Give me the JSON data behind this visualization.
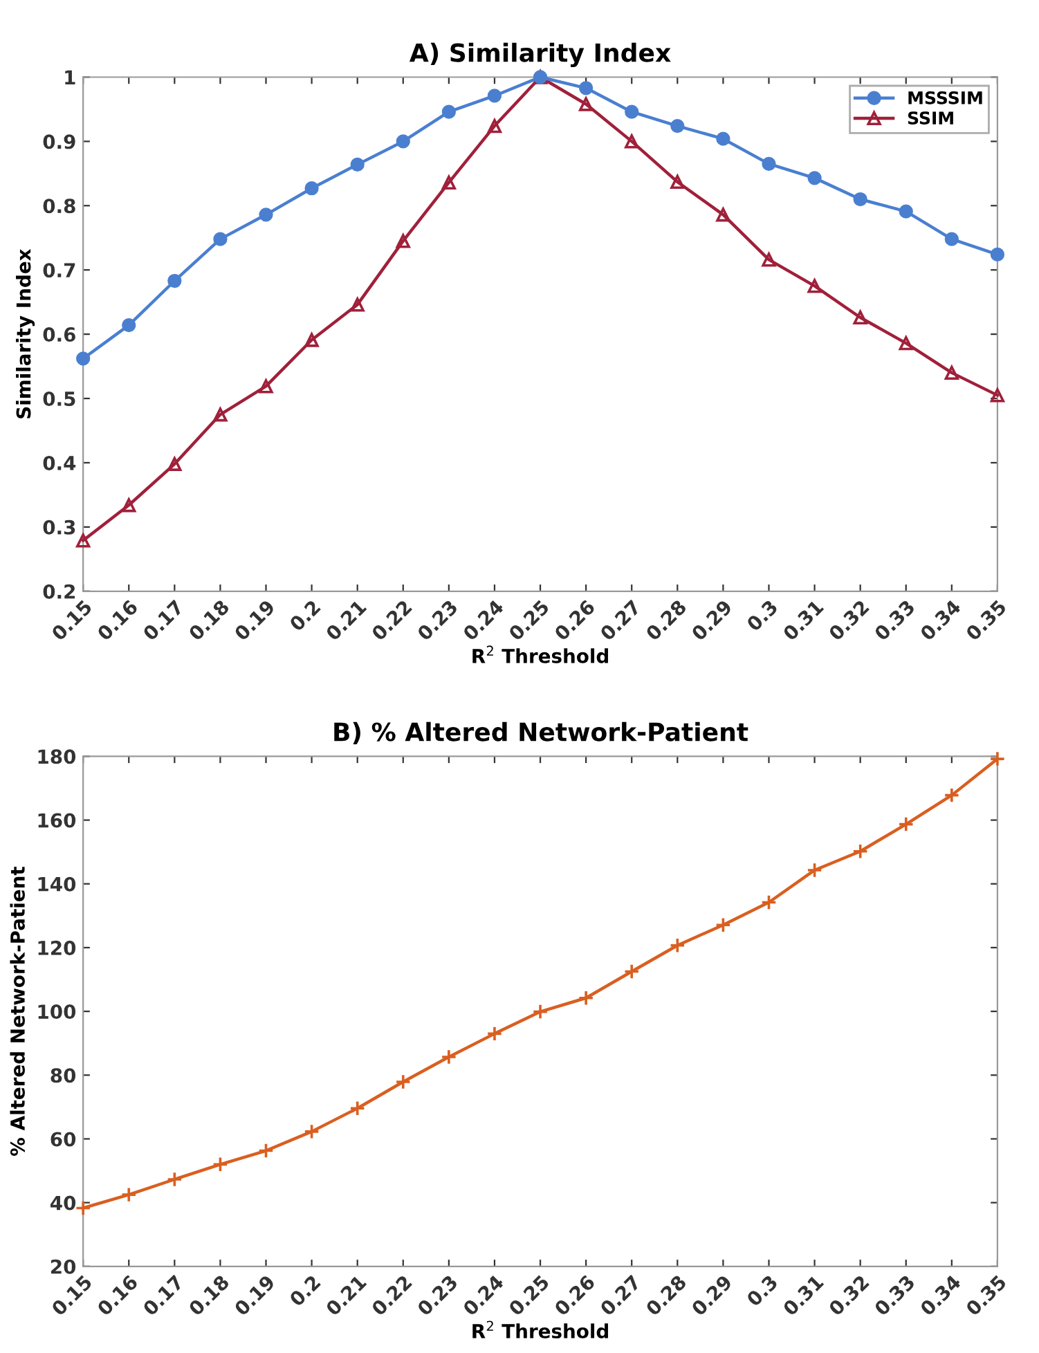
{
  "chart_data": [
    {
      "type": "line",
      "title": "A) Similarity Index",
      "xlabel": "R$^{2}$ Threshold",
      "ylabel": "Similarity Index",
      "x": [
        0.15,
        0.16,
        0.17,
        0.18,
        0.19,
        0.2,
        0.21,
        0.22,
        0.23,
        0.24,
        0.25,
        0.26,
        0.27,
        0.28,
        0.29,
        0.3,
        0.31,
        0.32,
        0.33,
        0.34,
        0.35
      ],
      "series": [
        {
          "name": "MSSSIM",
          "color": "#4a7fd0",
          "marker": "circle",
          "values": [
            0.562,
            0.614,
            0.683,
            0.748,
            0.786,
            0.827,
            0.864,
            0.9,
            0.946,
            0.971,
            1.0,
            0.983,
            0.946,
            0.924,
            0.904,
            0.865,
            0.843,
            0.81,
            0.791,
            0.748,
            0.724
          ]
        },
        {
          "name": "SSIM",
          "color": "#a0203a",
          "marker": "triangle",
          "values": [
            0.279,
            0.334,
            0.398,
            0.475,
            0.519,
            0.591,
            0.646,
            0.745,
            0.836,
            0.924,
            1.0,
            0.958,
            0.9,
            0.837,
            0.786,
            0.716,
            0.675,
            0.626,
            0.586,
            0.54,
            0.505
          ]
        }
      ],
      "xlim": [
        0.15,
        0.35
      ],
      "xticks": [
        0.15,
        0.16,
        0.17,
        0.18,
        0.19,
        0.2,
        0.21,
        0.22,
        0.23,
        0.24,
        0.25,
        0.26,
        0.27,
        0.28,
        0.29,
        0.3,
        0.31,
        0.32,
        0.33,
        0.34,
        0.35
      ],
      "ylim": [
        0.2,
        1
      ],
      "yticks": [
        0.2,
        0.3,
        0.4,
        0.5,
        0.6,
        0.7,
        0.8,
        0.9,
        1
      ],
      "legend": "top right",
      "line_style": "solid"
    },
    {
      "type": "line",
      "title": "B) % Altered Network-Patient",
      "xlabel": "R$^{2}$ Threshold",
      "ylabel": "% Altered Network-Patient",
      "x": [
        0.15,
        0.16,
        0.17,
        0.18,
        0.19,
        0.2,
        0.21,
        0.22,
        0.23,
        0.24,
        0.25,
        0.26,
        0.27,
        0.28,
        0.29,
        0.3,
        0.31,
        0.32,
        0.33,
        0.34,
        0.35
      ],
      "series": [
        {
          "color": "#d95f20",
          "values": [
            38.3,
            42.5,
            47.3,
            52,
            56.3,
            62.3,
            69.6,
            77.9,
            85.7,
            93,
            99.9,
            104.2,
            112.5,
            120.7,
            127.1,
            134.2,
            144.3,
            150.2,
            158.7,
            167.8,
            179.2
          ]
        }
      ],
      "xlim": [
        0.15,
        0.35
      ],
      "xticks": [
        0.15,
        0.16,
        0.17,
        0.18,
        0.19,
        0.2,
        0.21,
        0.22,
        0.23,
        0.24,
        0.25,
        0.26,
        0.27,
        0.28,
        0.29,
        0.3,
        0.31,
        0.32,
        0.33,
        0.34,
        0.35
      ],
      "ylim": [
        20,
        180
      ],
      "yticks": [
        20,
        40,
        60,
        80,
        100,
        120,
        140,
        160,
        180
      ],
      "marker": "cross",
      "line_style": "solid"
    }
  ]
}
